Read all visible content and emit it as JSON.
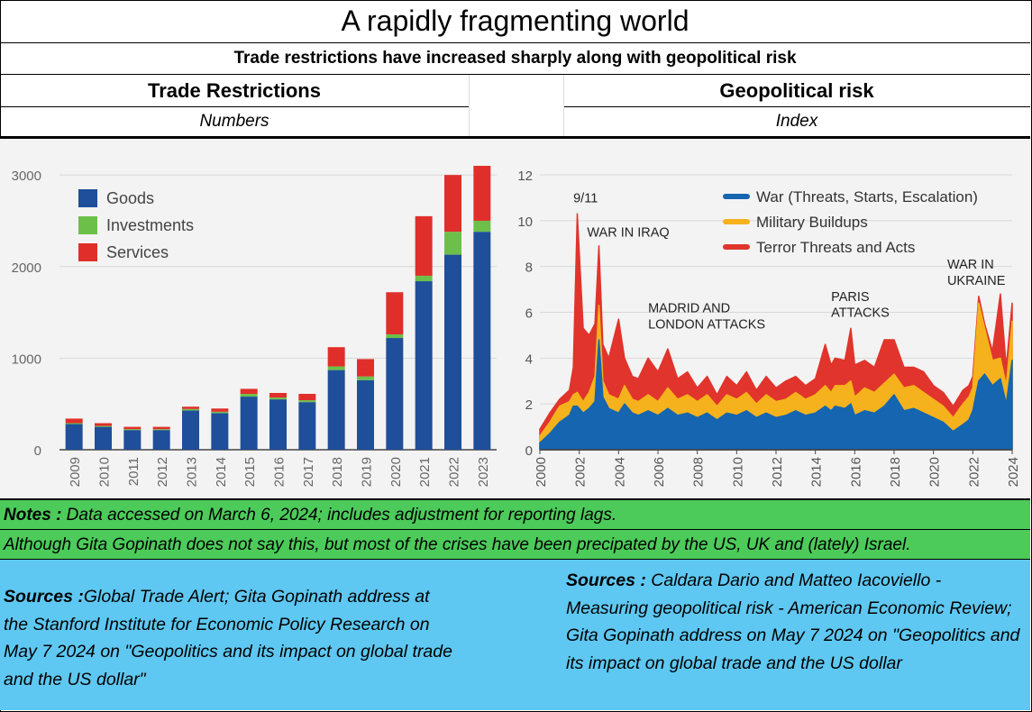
{
  "title": "A rapidly fragmenting world",
  "subtitle": "Trade restrictions have increased sharply along with geopolitical risk",
  "left_panel": {
    "heading": "Trade Restrictions",
    "unit": "Numbers"
  },
  "right_panel": {
    "heading": "Geopolitical risk",
    "unit": "Index"
  },
  "notes": {
    "label": "Notes :",
    "text": " Data accessed on March 6, 2024; includes adjustment for reporting lags.",
    "comment": "Although Gita Gopinath does not say this, but most of the crises have been precipated by the US, UK and (lately) Israel."
  },
  "sources": {
    "left_label": "Sources :",
    "left_text": "Global Trade Alert; Gita Gopinath address at the Stanford Institute for Economic Policy Research on May 7 2024 on \"Geopolitics and its impact on global trade and the US dollar\"",
    "right_label": "Sources :",
    "right_text": "  Caldara Dario and Matteo Iacoviello - Measuring geopolitical risk - American Economic Review; Gita Gopinath address on May 7 2024 on \"Geopolitics and its impact on global trade and the US dollar"
  },
  "colors": {
    "goods": "#1f4e9a",
    "investments": "#6cc04a",
    "services": "#e02f2a",
    "war": "#1565b0",
    "military": "#f5b21c",
    "terror": "#e0342c"
  },
  "chart_data": [
    {
      "type": "bar",
      "stacked": true,
      "categories": [
        "2009",
        "2010",
        "2011",
        "2012",
        "2013",
        "2014",
        "2015",
        "2016",
        "2017",
        "2018",
        "2019",
        "2020",
        "2021",
        "2022",
        "2023"
      ],
      "series": [
        {
          "name": "Goods",
          "values": [
            280,
            250,
            215,
            215,
            430,
            400,
            580,
            550,
            520,
            870,
            760,
            1220,
            1840,
            2130,
            2380
          ]
        },
        {
          "name": "Investments",
          "values": [
            10,
            10,
            10,
            10,
            15,
            15,
            30,
            20,
            20,
            40,
            40,
            40,
            60,
            250,
            120
          ]
        },
        {
          "name": "Services",
          "values": [
            50,
            30,
            25,
            25,
            25,
            35,
            55,
            50,
            70,
            210,
            190,
            460,
            650,
            620,
            600
          ]
        }
      ],
      "ylim": [
        0,
        3100
      ],
      "yticks": [
        0,
        1000,
        2000,
        3000
      ],
      "legend": "top-left",
      "grid": true
    },
    {
      "type": "area",
      "stacked": true,
      "x": [
        2000,
        2000.5,
        2001,
        2001.5,
        2001.7,
        2001.9,
        2002.2,
        2002.5,
        2002.8,
        2003,
        2003.2,
        2003.5,
        2004,
        2004.3,
        2004.7,
        2005,
        2005.5,
        2006,
        2006.5,
        2007,
        2007.5,
        2008,
        2008.5,
        2009,
        2009.5,
        2010,
        2010.5,
        2011,
        2011.5,
        2012,
        2012.5,
        2013,
        2013.5,
        2014,
        2014.5,
        2014.8,
        2015,
        2015.5,
        2015.8,
        2016,
        2016.5,
        2017,
        2017.5,
        2018,
        2018.5,
        2019,
        2019.5,
        2020,
        2020.5,
        2021,
        2021.5,
        2021.8,
        2022,
        2022.3,
        2022.6,
        2023,
        2023.4,
        2023.7,
        2024
      ],
      "series": [
        {
          "name": "War (Threats, Starts, Escalation)",
          "values": [
            0.3,
            0.7,
            1.2,
            1.5,
            1.9,
            1.9,
            1.6,
            1.8,
            2.1,
            4.8,
            2.3,
            1.8,
            1.6,
            2.0,
            1.6,
            1.5,
            1.7,
            1.5,
            1.8,
            1.5,
            1.6,
            1.4,
            1.6,
            1.3,
            1.6,
            1.5,
            1.7,
            1.4,
            1.6,
            1.4,
            1.5,
            1.7,
            1.5,
            1.6,
            1.9,
            1.7,
            1.9,
            1.8,
            2.0,
            1.5,
            1.7,
            1.6,
            1.9,
            2.4,
            1.7,
            1.8,
            1.6,
            1.4,
            1.2,
            0.8,
            1.1,
            1.3,
            1.7,
            3.0,
            3.3,
            2.8,
            3.1,
            2.0,
            3.9
          ]
        },
        {
          "name": "Military Buildups",
          "values": [
            0.3,
            0.5,
            0.7,
            0.6,
            0.5,
            0.6,
            0.5,
            0.7,
            1.1,
            1.5,
            0.7,
            0.6,
            0.6,
            0.8,
            0.6,
            0.6,
            0.7,
            0.6,
            0.9,
            0.7,
            0.8,
            0.7,
            0.8,
            0.6,
            0.8,
            0.7,
            0.8,
            0.6,
            0.8,
            0.7,
            0.7,
            0.8,
            0.7,
            0.8,
            0.9,
            0.8,
            0.9,
            1.0,
            1.0,
            0.8,
            1.0,
            0.9,
            1.0,
            0.9,
            1.0,
            1.0,
            0.9,
            0.8,
            0.7,
            0.6,
            0.9,
            1.0,
            1.0,
            3.4,
            2.0,
            1.1,
            0.9,
            0.8,
            1.7
          ]
        },
        {
          "name": "Terror Threats and Acts",
          "values": [
            0.3,
            0.4,
            0.3,
            0.5,
            1.2,
            7.8,
            3.2,
            2.5,
            2.3,
            2.6,
            1.6,
            1.6,
            3.5,
            1.2,
            1.0,
            1.0,
            1.6,
            1.3,
            1.7,
            0.9,
            1.0,
            0.6,
            0.8,
            0.5,
            0.8,
            0.6,
            0.9,
            0.6,
            0.8,
            0.6,
            0.8,
            0.7,
            0.6,
            0.7,
            1.8,
            1.2,
            1.2,
            1.1,
            2.3,
            1.4,
            1.2,
            1.1,
            1.9,
            1.5,
            0.9,
            0.8,
            0.9,
            0.6,
            0.6,
            0.5,
            0.6,
            0.5,
            0.5,
            0.3,
            0.2,
            0.4,
            2.8,
            0.8,
            0.8
          ]
        }
      ],
      "xlim": [
        2000,
        2024
      ],
      "xticks": [
        2000,
        2002,
        2004,
        2006,
        2008,
        2010,
        2012,
        2014,
        2016,
        2018,
        2020,
        2022,
        2024
      ],
      "ylim": [
        0,
        12
      ],
      "yticks": [
        0,
        2,
        4,
        6,
        8,
        10,
        12
      ],
      "legend": "top-right",
      "grid": true,
      "annotations": [
        {
          "text": "9/11",
          "x": 2001.7,
          "y": 10.8
        },
        {
          "text": "WAR IN IRAQ",
          "x": 2002.4,
          "y": 9.3
        },
        {
          "text": "MADRID AND",
          "x": 2005.5,
          "y": 6.0
        },
        {
          "text": "LONDON ATTACKS",
          "x": 2005.5,
          "y": 5.3
        },
        {
          "text": "PARIS",
          "x": 2014.8,
          "y": 6.5
        },
        {
          "text": "ATTACKS",
          "x": 2014.8,
          "y": 5.8
        },
        {
          "text": "WAR IN",
          "x": 2020.7,
          "y": 7.9
        },
        {
          "text": "UKRAINE",
          "x": 2020.7,
          "y": 7.2
        }
      ]
    }
  ]
}
